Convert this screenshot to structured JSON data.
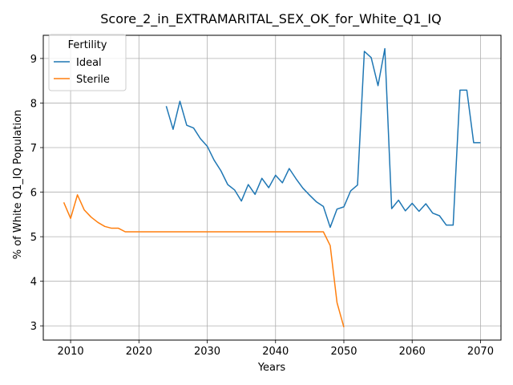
{
  "chart_data": {
    "type": "line",
    "title": "Score_2_in_EXTRAMARITAL_SEX_OK_for_White_Q1_IQ",
    "xlabel": "Years",
    "ylabel": "% of White Q1_IQ Population",
    "xlim": [
      2006,
      2073
    ],
    "ylim": [
      2.68,
      9.52
    ],
    "xticks": [
      2010,
      2020,
      2030,
      2040,
      2050,
      2060,
      2070
    ],
    "yticks": [
      3,
      4,
      5,
      6,
      7,
      8,
      9
    ],
    "grid": true,
    "legend": {
      "title": "Fertility",
      "placement": "top-left"
    },
    "series": [
      {
        "name": "Ideal",
        "color": "#1f77b4",
        "x": [
          2024,
          2025,
          2026,
          2027,
          2028,
          2029,
          2030,
          2031,
          2032,
          2033,
          2034,
          2035,
          2036,
          2037,
          2038,
          2039,
          2040,
          2041,
          2042,
          2043,
          2044,
          2045,
          2046,
          2047,
          2048,
          2049,
          2050,
          2051,
          2052,
          2053,
          2054,
          2055,
          2056,
          2057,
          2058,
          2059,
          2060,
          2061,
          2062,
          2063,
          2064,
          2065,
          2066,
          2067,
          2068,
          2069,
          2070
        ],
        "y": [
          7.93,
          7.41,
          8.04,
          7.5,
          7.44,
          7.2,
          7.03,
          6.72,
          6.48,
          6.17,
          6.05,
          5.8,
          6.17,
          5.95,
          6.31,
          6.1,
          6.38,
          6.21,
          6.53,
          6.3,
          6.09,
          5.93,
          5.78,
          5.68,
          5.21,
          5.62,
          5.67,
          6.03,
          6.16,
          9.16,
          9.02,
          8.39,
          9.22,
          5.63,
          5.82,
          5.58,
          5.75,
          5.57,
          5.74,
          5.53,
          5.47,
          5.26,
          5.26,
          8.29,
          8.29,
          7.11,
          7.11
        ]
      },
      {
        "name": "Sterile",
        "color": "#ff7f0e",
        "x": [
          2009,
          2010,
          2011,
          2012,
          2013,
          2014,
          2015,
          2016,
          2017,
          2018,
          2019,
          2020,
          2021,
          2022,
          2023,
          2024,
          2025,
          2026,
          2027,
          2028,
          2029,
          2030,
          2031,
          2032,
          2033,
          2034,
          2035,
          2036,
          2037,
          2038,
          2039,
          2040,
          2041,
          2042,
          2043,
          2044,
          2045,
          2046,
          2047,
          2048,
          2049,
          2050
        ],
        "y": [
          5.77,
          5.41,
          5.94,
          5.6,
          5.44,
          5.32,
          5.23,
          5.19,
          5.19,
          5.11,
          5.11,
          5.11,
          5.11,
          5.11,
          5.11,
          5.11,
          5.11,
          5.11,
          5.11,
          5.11,
          5.11,
          5.11,
          5.11,
          5.11,
          5.11,
          5.11,
          5.11,
          5.11,
          5.11,
          5.11,
          5.11,
          5.11,
          5.11,
          5.11,
          5.11,
          5.11,
          5.11,
          5.11,
          5.11,
          4.8,
          3.52,
          2.97
        ]
      }
    ]
  }
}
